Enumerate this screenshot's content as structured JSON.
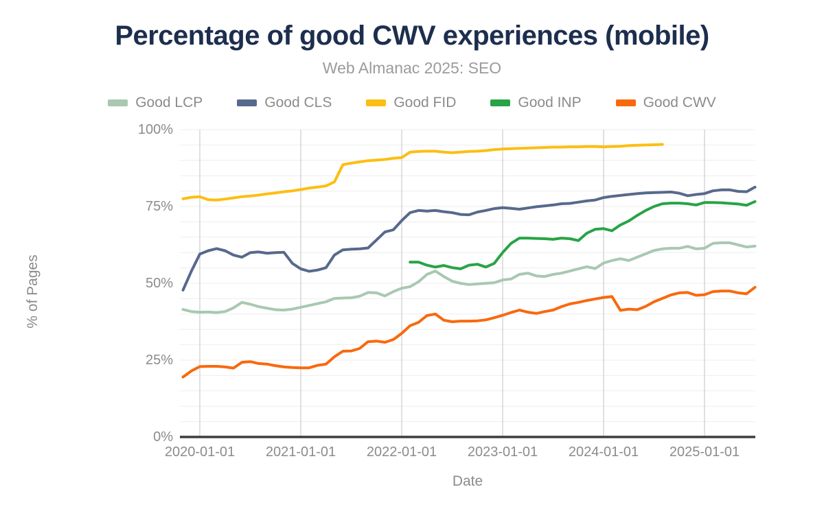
{
  "header": {
    "title": "Percentage of good CWV experiences (mobile)",
    "subtitle": "Web Almanac 2025: SEO"
  },
  "chart_data": {
    "type": "line",
    "title": "Percentage of good CWV experiences (mobile)",
    "subtitle": "Web Almanac 2025: SEO",
    "xlabel": "Date",
    "ylabel": "% of Pages",
    "ylim": [
      0,
      100
    ],
    "grid": "minor horizontal every 5%, vertical at each year",
    "legend_position": "top",
    "y_ticks": [
      {
        "value": 0,
        "label": "0%"
      },
      {
        "value": 25,
        "label": "25%"
      },
      {
        "value": 50,
        "label": "50%"
      },
      {
        "value": 75,
        "label": "75%"
      },
      {
        "value": 100,
        "label": "100%"
      }
    ],
    "x_ticks": [
      "2020-01-01",
      "2021-01-01",
      "2022-01-01",
      "2023-01-01",
      "2024-01-01",
      "2025-01-01"
    ],
    "x": [
      "2019-11",
      "2019-12",
      "2020-01",
      "2020-02",
      "2020-03",
      "2020-04",
      "2020-05",
      "2020-06",
      "2020-07",
      "2020-08",
      "2020-09",
      "2020-10",
      "2020-11",
      "2020-12",
      "2021-01",
      "2021-02",
      "2021-03",
      "2021-04",
      "2021-05",
      "2021-06",
      "2021-07",
      "2021-08",
      "2021-09",
      "2021-10",
      "2021-11",
      "2021-12",
      "2022-01",
      "2022-02",
      "2022-03",
      "2022-04",
      "2022-05",
      "2022-06",
      "2022-07",
      "2022-08",
      "2022-09",
      "2022-10",
      "2022-11",
      "2022-12",
      "2023-01",
      "2023-02",
      "2023-03",
      "2023-04",
      "2023-05",
      "2023-06",
      "2023-07",
      "2023-08",
      "2023-09",
      "2023-10",
      "2023-11",
      "2023-12",
      "2024-01",
      "2024-02",
      "2024-03",
      "2024-04",
      "2024-05",
      "2024-06",
      "2024-07",
      "2024-08",
      "2024-09",
      "2024-10",
      "2024-11",
      "2024-12",
      "2025-01",
      "2025-02",
      "2025-03",
      "2025-04",
      "2025-05",
      "2025-06",
      "2025-07"
    ],
    "series": [
      {
        "name": "Good LCP",
        "color": "#a9c8b1",
        "values": [
          41.5,
          40.8,
          40.6,
          40.7,
          40.5,
          40.8,
          42.0,
          43.8,
          43.2,
          42.4,
          41.9,
          41.4,
          41.3,
          41.6,
          42.2,
          42.8,
          43.4,
          44.0,
          45.1,
          45.2,
          45.3,
          45.8,
          47.0,
          46.9,
          45.9,
          47.3,
          48.4,
          48.9,
          50.5,
          52.9,
          54.0,
          52.2,
          50.7,
          50.0,
          49.6,
          49.8,
          50.0,
          50.2,
          51.1,
          51.4,
          52.9,
          53.3,
          52.4,
          52.2,
          52.9,
          53.3,
          54.0,
          54.7,
          55.4,
          54.8,
          56.6,
          57.4,
          58.0,
          57.4,
          58.5,
          59.6,
          60.7,
          61.2,
          61.4,
          61.4,
          62.0,
          61.2,
          61.4,
          63.0,
          63.2,
          63.2,
          62.5,
          61.8,
          62.1
        ]
      },
      {
        "name": "Good CLS",
        "color": "#57698c",
        "values": [
          47.8,
          54.0,
          59.5,
          60.6,
          61.3,
          60.6,
          59.2,
          58.5,
          60.0,
          60.2,
          59.8,
          60.0,
          60.1,
          56.5,
          54.7,
          53.9,
          54.3,
          55.1,
          59.2,
          60.9,
          61.1,
          61.2,
          61.5,
          64.1,
          66.7,
          67.4,
          70.4,
          73.0,
          73.7,
          73.5,
          73.7,
          73.3,
          73.0,
          72.4,
          72.3,
          73.2,
          73.7,
          74.3,
          74.6,
          74.4,
          74.1,
          74.5,
          74.9,
          75.2,
          75.5,
          75.9,
          76.0,
          76.4,
          76.8,
          77.1,
          77.9,
          78.3,
          78.6,
          78.9,
          79.2,
          79.4,
          79.5,
          79.6,
          79.7,
          79.3,
          78.5,
          78.9,
          79.2,
          80.1,
          80.4,
          80.4,
          79.9,
          79.8,
          81.3
        ]
      },
      {
        "name": "Good FID",
        "color": "#fcbe12",
        "values": [
          77.5,
          78.0,
          78.2,
          77.2,
          77.1,
          77.4,
          77.8,
          78.2,
          78.4,
          78.7,
          79.1,
          79.4,
          79.8,
          80.1,
          80.5,
          81.0,
          81.3,
          81.7,
          83.0,
          88.6,
          89.1,
          89.5,
          89.9,
          90.1,
          90.3,
          90.7,
          90.9,
          92.7,
          92.9,
          93.0,
          93.0,
          92.7,
          92.5,
          92.7,
          92.9,
          93.0,
          93.2,
          93.5,
          93.7,
          93.8,
          93.9,
          94.0,
          94.1,
          94.2,
          94.3,
          94.3,
          94.4,
          94.4,
          94.5,
          94.5,
          94.4,
          94.5,
          94.6,
          94.8,
          94.9,
          95.0,
          95.1,
          95.2,
          null,
          null,
          null,
          null,
          null,
          null,
          null,
          null,
          null,
          null,
          null
        ]
      },
      {
        "name": "Good INP",
        "color": "#28a346",
        "values": [
          null,
          null,
          null,
          null,
          null,
          null,
          null,
          null,
          null,
          null,
          null,
          null,
          null,
          null,
          null,
          null,
          null,
          null,
          null,
          null,
          null,
          null,
          null,
          null,
          null,
          null,
          null,
          56.9,
          56.9,
          55.9,
          55.3,
          55.8,
          55.1,
          54.7,
          55.9,
          56.2,
          55.3,
          56.5,
          60.0,
          63.0,
          64.7,
          64.7,
          64.6,
          64.5,
          64.3,
          64.7,
          64.5,
          63.9,
          66.3,
          67.6,
          67.8,
          67.1,
          69.0,
          70.3,
          72.1,
          73.7,
          75.0,
          75.9,
          76.1,
          76.1,
          75.9,
          75.5,
          76.3,
          76.3,
          76.2,
          76.0,
          75.8,
          75.4,
          76.6
        ]
      },
      {
        "name": "Good CWV",
        "color": "#f8690e",
        "values": [
          19.5,
          21.5,
          22.9,
          23.0,
          23.0,
          22.8,
          22.4,
          24.3,
          24.5,
          23.9,
          23.7,
          23.2,
          22.8,
          22.6,
          22.5,
          22.5,
          23.3,
          23.7,
          26.1,
          27.9,
          28.0,
          28.8,
          31.0,
          31.2,
          30.8,
          31.7,
          33.7,
          36.2,
          37.3,
          39.5,
          40.0,
          38.0,
          37.5,
          37.7,
          37.7,
          37.8,
          38.1,
          38.8,
          39.6,
          40.5,
          41.3,
          40.6,
          40.2,
          40.8,
          41.3,
          42.4,
          43.3,
          43.8,
          44.4,
          44.9,
          45.4,
          45.7,
          41.2,
          41.6,
          41.4,
          42.5,
          44.0,
          45.1,
          46.2,
          46.9,
          47.0,
          46.1,
          46.3,
          47.3,
          47.5,
          47.5,
          46.9,
          46.6,
          48.7
        ]
      }
    ],
    "colors": {
      "title": "#1d2e4e",
      "subtitle_text": "#9b9b9b",
      "axis_text": "#8b8b8b",
      "axis_line": "#3d3d3d",
      "minor_grid": "#ededed",
      "year_grid": "#d5d5d5"
    }
  }
}
